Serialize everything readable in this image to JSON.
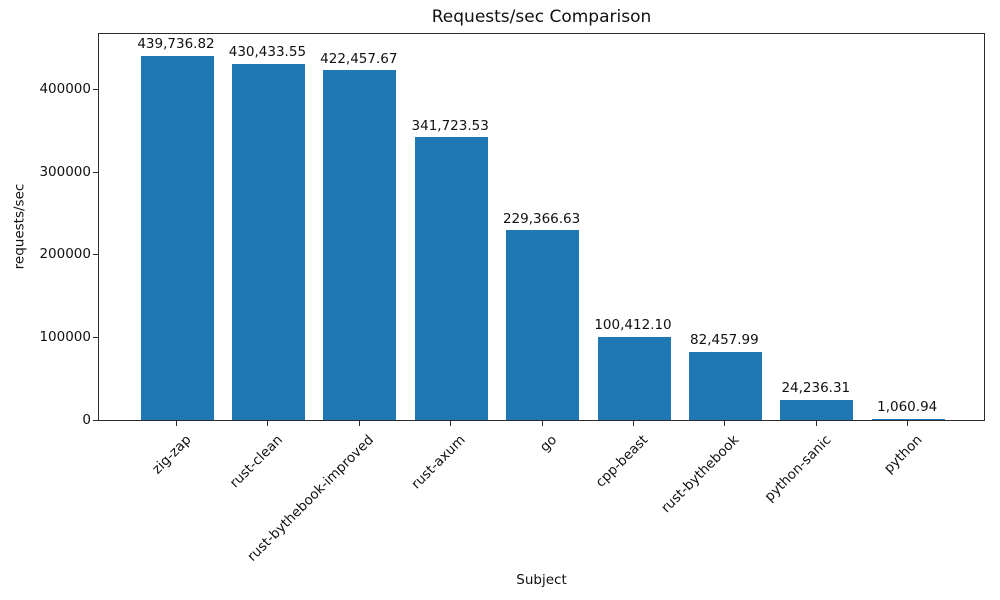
{
  "chart_data": {
    "type": "bar",
    "title": "Requests/sec Comparison",
    "xlabel": "Subject",
    "ylabel": "requests/sec",
    "categories": [
      "zig-zap",
      "rust-clean",
      "rust-bythebook-improved",
      "rust-axum",
      "go",
      "cpp-beast",
      "rust-bythebook",
      "python-sanic",
      "python"
    ],
    "values": [
      439736.82,
      430433.55,
      422457.67,
      341723.53,
      229366.63,
      100412.1,
      82457.99,
      24236.31,
      1060.94
    ],
    "value_labels": [
      "439,736.82",
      "430,433.55",
      "422,457.67",
      "341,723.53",
      "229,366.63",
      "100,412.10",
      "82,457.99",
      "24,236.31",
      "1,060.94"
    ],
    "ylim": [
      0,
      468000
    ],
    "yticks": [
      0,
      100000,
      200000,
      300000,
      400000
    ],
    "ytick_labels": [
      "0",
      "100000",
      "200000",
      "300000",
      "400000"
    ],
    "bar_color": "#1f77b4",
    "grid": false,
    "legend": "none"
  }
}
